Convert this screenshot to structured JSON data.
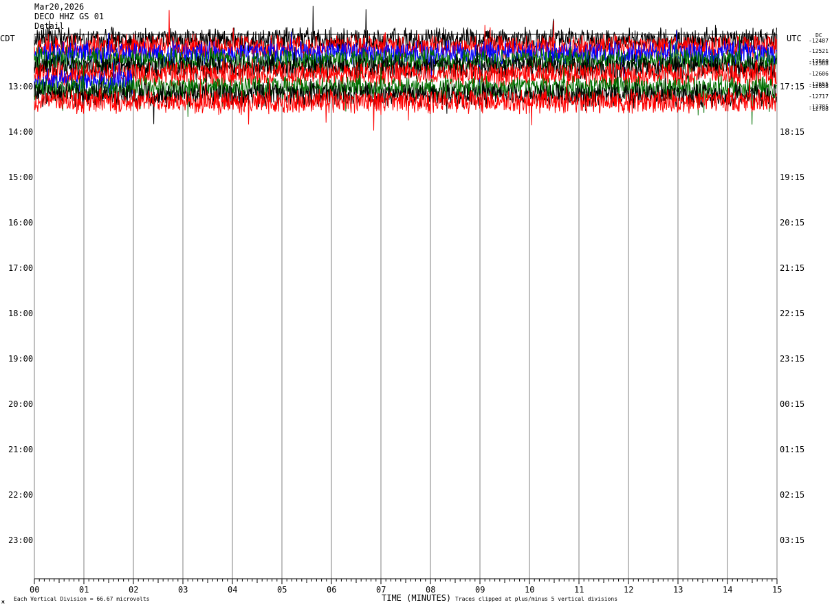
{
  "header": {
    "date": "Mar20,2026",
    "station": "DECO HHZ GS 01",
    "line3": "Detail"
  },
  "left_zone_label": "CDT",
  "right_zone_label": "UTC",
  "dc_label": "DC",
  "dc_values": [
    "-12487",
    "-12521",
    "-12560",
    "-12568",
    "-12606",
    "-12655",
    "-12658",
    "-12717",
    "-12785",
    "-12788"
  ],
  "colors": {
    "c1": "#000000",
    "c2": "#ff0000",
    "c3": "#0000ff",
    "c4": "#007000",
    "grid": "#7f7f7f"
  },
  "footer": {
    "corner": "ж",
    "division_note": "Each Vertical Division =    66.67 microvolts",
    "xaxis_title": "TIME (MINUTES)",
    "clip_note": "Traces clipped at plus/minus 5 vertical divisions"
  },
  "chart_data": {
    "type": "line",
    "title": "",
    "xlabel": "TIME (MINUTES)",
    "xlim": [
      0,
      15
    ],
    "x_ticks": [
      "00",
      "01",
      "02",
      "03",
      "04",
      "05",
      "06",
      "07",
      "08",
      "09",
      "10",
      "11",
      "12",
      "13",
      "14",
      "15"
    ],
    "left_ticks": [
      "13:00",
      "14:00",
      "15:00",
      "16:00",
      "17:00",
      "18:00",
      "19:00",
      "20:00",
      "21:00",
      "22:00",
      "23:00"
    ],
    "right_ticks": [
      "17:15",
      "18:15",
      "19:15",
      "20:15",
      "21:15",
      "22:15",
      "23:15",
      "00:15",
      "01:15",
      "02:15",
      "03:15"
    ],
    "series_color_cycle": [
      "black",
      "red",
      "blue",
      "green"
    ],
    "rows_recorded": 10,
    "data_ends_at_minute": 15,
    "grid": true
  }
}
